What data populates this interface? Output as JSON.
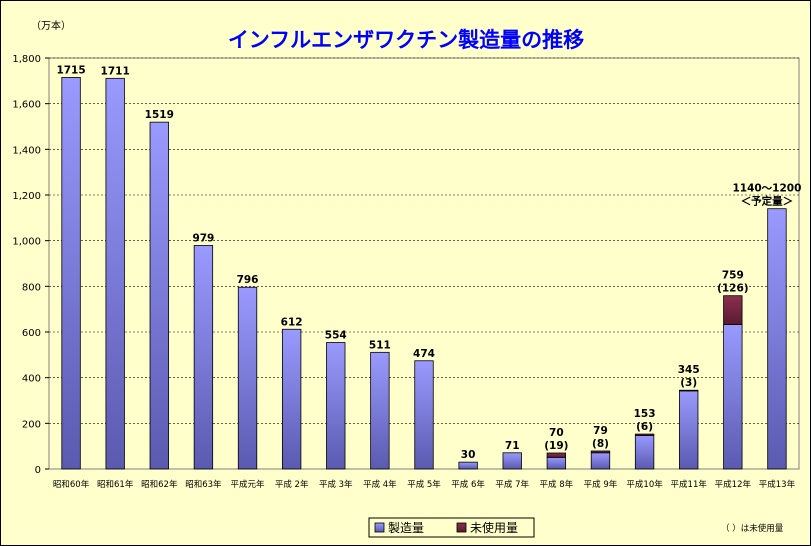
{
  "chart_data": {
    "type": "bar",
    "stacked": true,
    "title": "インフルエンザワクチン製造量の推移",
    "unit_label": "（万本）",
    "ylim": [
      0,
      1800
    ],
    "yticks": [
      "0",
      "200",
      "400",
      "600",
      "800",
      "1,000",
      "1,200",
      "1,400",
      "1,600",
      "1,800"
    ],
    "grid": true,
    "legend_position": "bottom",
    "categories": [
      "昭和60年",
      "昭和61年",
      "昭和62年",
      "昭和63年",
      "平成元年",
      "平成 2年",
      "平成 3年",
      "平成 4年",
      "平成 5年",
      "平成 6年",
      "平成 7年",
      "平成 8年",
      "平成 9年",
      "平成10年",
      "平成11年",
      "平成12年",
      "平成13年"
    ],
    "series": [
      {
        "name": "製造量",
        "color": "#8888ff",
        "values": [
          1715,
          1711,
          1519,
          979,
          796,
          612,
          554,
          511,
          474,
          30,
          71,
          51,
          71,
          147,
          342,
          633,
          1140
        ]
      },
      {
        "name": "未使用量",
        "color": "#7a2a4a",
        "values": [
          0,
          0,
          0,
          0,
          0,
          0,
          0,
          0,
          0,
          0,
          0,
          19,
          8,
          6,
          3,
          126,
          0
        ]
      }
    ],
    "data_labels": [
      [
        "1715"
      ],
      [
        "1711"
      ],
      [
        "1519"
      ],
      [
        "979"
      ],
      [
        "796"
      ],
      [
        "612"
      ],
      [
        "554"
      ],
      [
        "511"
      ],
      [
        "474"
      ],
      [
        "30"
      ],
      [
        "71"
      ],
      [
        "70",
        "(19)"
      ],
      [
        "79",
        "(8)"
      ],
      [
        "153",
        "(6)"
      ],
      [
        "345",
        "(3)"
      ],
      [
        "759",
        "(126)"
      ],
      [
        "1140～1200",
        "＜予定量＞"
      ]
    ],
    "note": "（ ）は未使用量"
  }
}
